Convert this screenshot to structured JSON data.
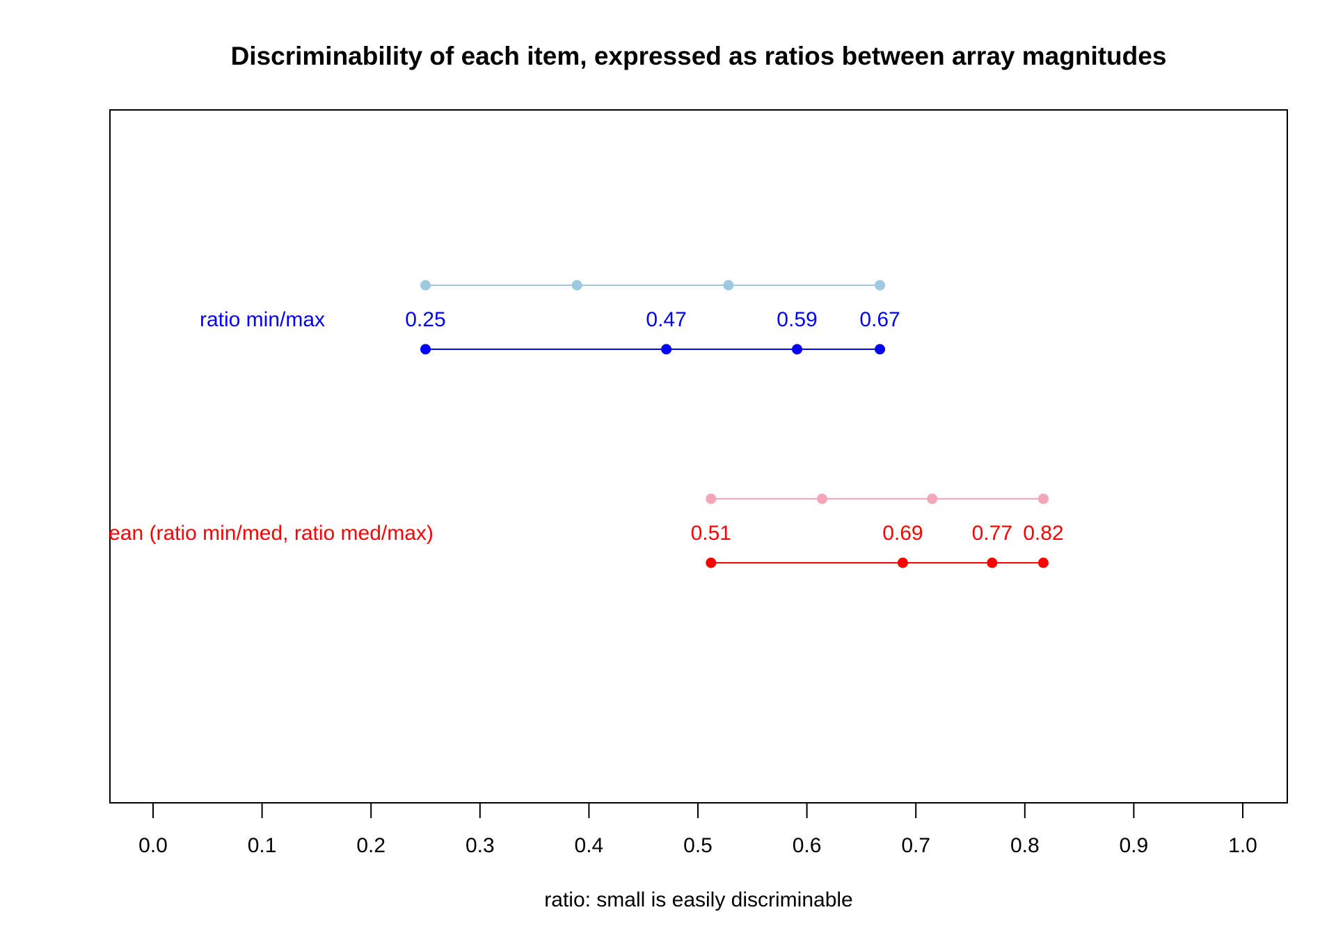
{
  "chart_data": {
    "type": "scatter",
    "title": "Discriminability of each item, expressed as ratios between array magnitudes",
    "xlabel": "ratio: small is easily discriminable",
    "ylabel": "",
    "xlim": [
      0.0,
      1.0
    ],
    "xticks": [
      "0.0",
      "0.1",
      "0.2",
      "0.3",
      "0.4",
      "0.5",
      "0.6",
      "0.7",
      "0.8",
      "0.9",
      "1.0"
    ],
    "grid": false,
    "rows": [
      {
        "label": "ratio min/max",
        "label_color": "#0000ff",
        "reference_points": [
          0.25,
          0.389,
          0.528,
          0.667
        ],
        "reference_color": "#9ecae1",
        "points": [
          0.25,
          0.471,
          0.591,
          0.667
        ],
        "point_labels": [
          "0.25",
          "0.47",
          "0.59",
          "0.67"
        ],
        "color": "#0000ff"
      },
      {
        "label": "mean (ratio min/med, ratio med/max)",
        "label_color": "#ff0000",
        "reference_points": [
          0.512,
          0.614,
          0.715,
          0.817
        ],
        "reference_color": "#f4a6b8",
        "points": [
          0.512,
          0.688,
          0.77,
          0.817
        ],
        "point_labels": [
          "0.51",
          "0.69",
          "0.77",
          "0.82"
        ],
        "color": "#ff0000"
      }
    ]
  }
}
